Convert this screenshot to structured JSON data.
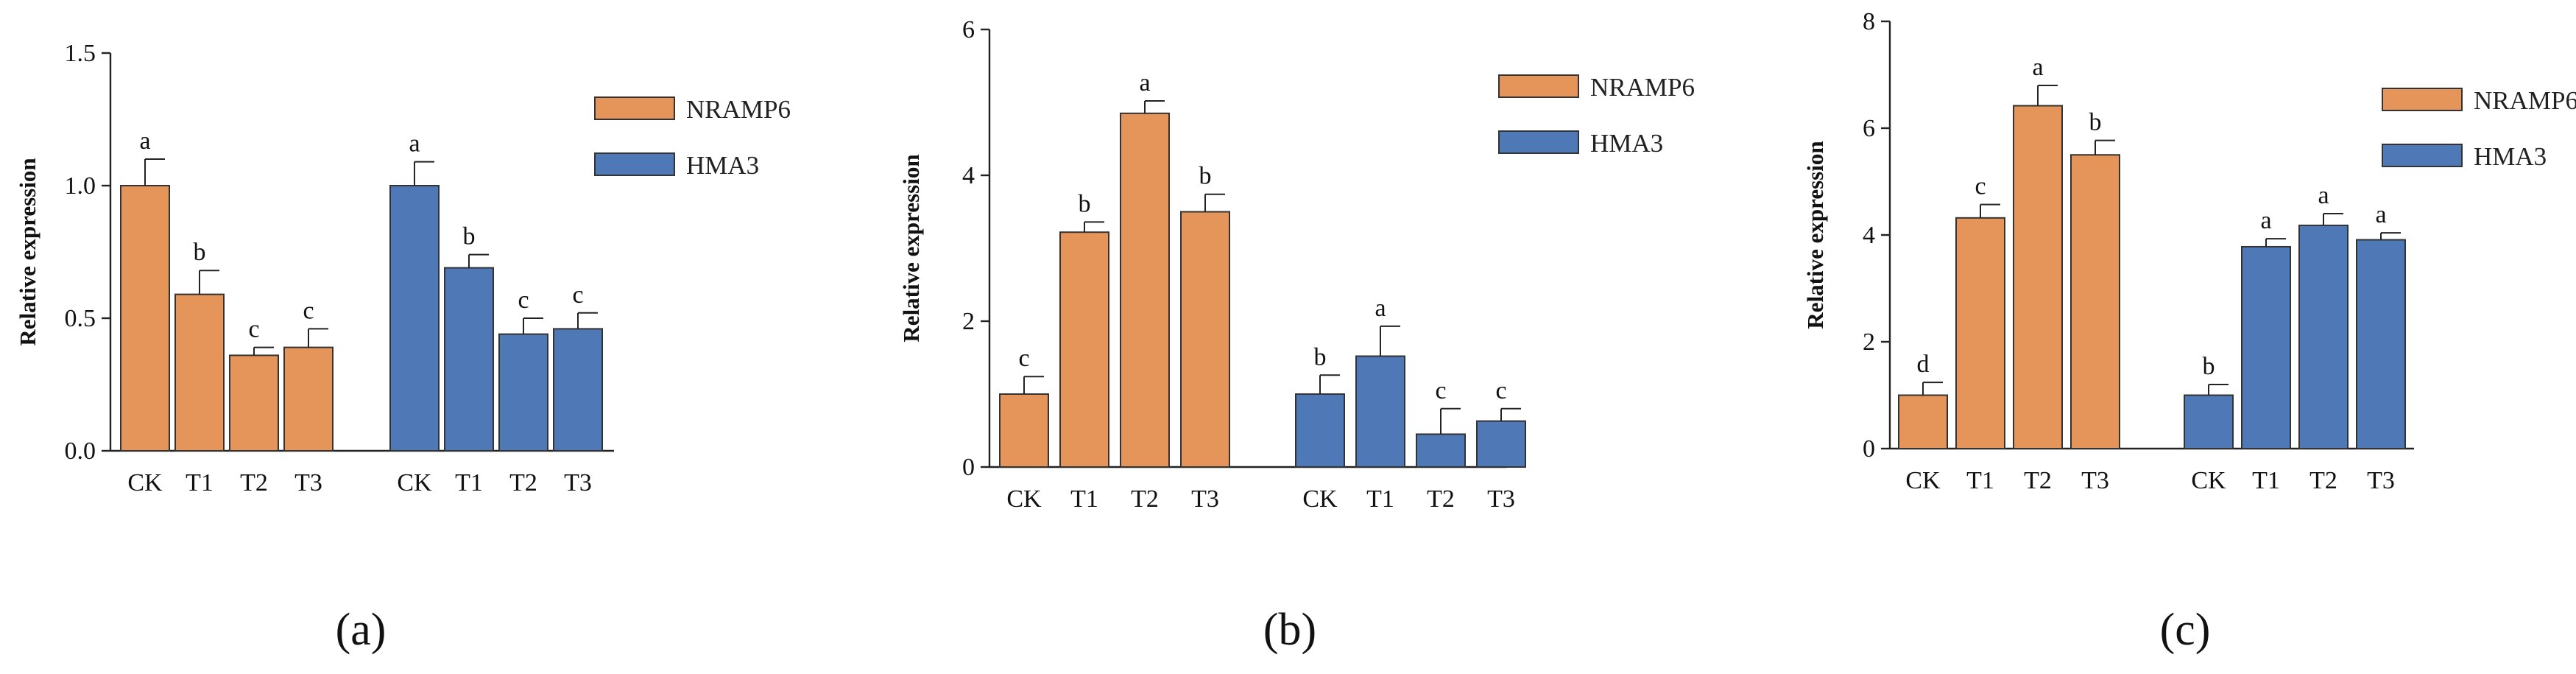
{
  "colors": {
    "nramp6": "#E59559",
    "hma3": "#4F79B6",
    "stroke": "#333333"
  },
  "chart_data": [
    {
      "type": "bar",
      "panel_label": "(a)",
      "ylabel": "Relative expression",
      "ylim": [
        0,
        1.5
      ],
      "yticks": [
        0.0,
        0.5,
        1.0,
        1.5
      ],
      "ytick_labels": [
        "0.0",
        "0.5",
        "1.0",
        "1.5"
      ],
      "categories": [
        "CK",
        "T1",
        "T2",
        "T3"
      ],
      "series": [
        {
          "name": "NRAMP6",
          "values": [
            1.0,
            0.59,
            0.36,
            0.39
          ],
          "errors": [
            0.1,
            0.09,
            0.03,
            0.07
          ],
          "letters": [
            "a",
            "b",
            "c",
            "c"
          ]
        },
        {
          "name": "HMA3",
          "values": [
            1.0,
            0.69,
            0.44,
            0.46
          ],
          "errors": [
            0.09,
            0.05,
            0.06,
            0.06
          ],
          "letters": [
            "a",
            "b",
            "c",
            "c"
          ]
        }
      ]
    },
    {
      "type": "bar",
      "panel_label": "(b)",
      "ylabel": "Relative expression",
      "ylim": [
        0,
        6
      ],
      "yticks": [
        0,
        2,
        4,
        6
      ],
      "ytick_labels": [
        "0",
        "2",
        "4",
        "6"
      ],
      "categories": [
        "CK",
        "T1",
        "T2",
        "T3"
      ],
      "series": [
        {
          "name": "NRAMP6",
          "values": [
            1.0,
            3.22,
            4.85,
            3.5
          ],
          "errors": [
            0.24,
            0.14,
            0.17,
            0.24
          ],
          "letters": [
            "c",
            "b",
            "a",
            "b"
          ]
        },
        {
          "name": "HMA3",
          "values": [
            1.0,
            1.52,
            0.45,
            0.63
          ],
          "errors": [
            0.26,
            0.41,
            0.35,
            0.17
          ],
          "letters": [
            "b",
            "a",
            "c",
            "c"
          ]
        }
      ]
    },
    {
      "type": "bar",
      "panel_label": "(c)",
      "ylabel": "Relative expression",
      "ylim": [
        0,
        8
      ],
      "yticks": [
        0,
        2,
        4,
        6,
        8
      ],
      "ytick_labels": [
        "0",
        "2",
        "4",
        "6",
        "8"
      ],
      "categories": [
        "CK",
        "T1",
        "T2",
        "T3"
      ],
      "series": [
        {
          "name": "NRAMP6",
          "values": [
            1.0,
            4.32,
            6.42,
            5.5
          ],
          "errors": [
            0.24,
            0.25,
            0.38,
            0.27
          ],
          "letters": [
            "d",
            "c",
            "a",
            "b"
          ]
        },
        {
          "name": "HMA3",
          "values": [
            1.0,
            3.78,
            4.18,
            3.91
          ],
          "errors": [
            0.2,
            0.15,
            0.22,
            0.13
          ],
          "letters": [
            "b",
            "a",
            "a",
            "a"
          ]
        }
      ]
    }
  ]
}
